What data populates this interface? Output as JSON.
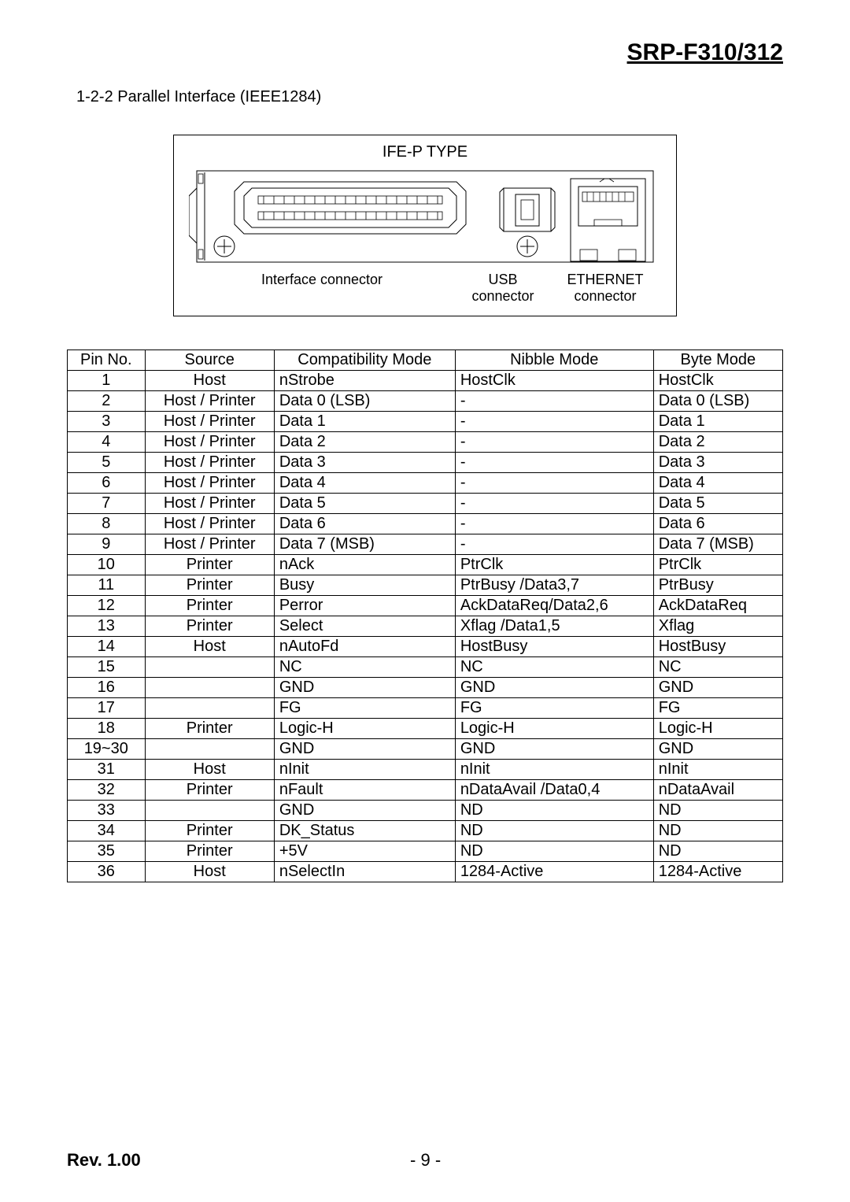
{
  "header": {
    "title": "SRP-F310/312"
  },
  "section": {
    "title": "1-2-2 Parallel Interface (IEEE1284)"
  },
  "diagram": {
    "title": "IFE-P TYPE",
    "labels": {
      "interface": "Interface connector",
      "usb_line1": "USB",
      "usb_line2": "connector",
      "eth_line1": "ETHERNET",
      "eth_line2": "connector"
    }
  },
  "table": {
    "columns": [
      "Pin No.",
      "Source",
      "Compatibility Mode",
      "Nibble Mode",
      "Byte Mode"
    ],
    "rows": [
      [
        "1",
        "Host",
        "nStrobe",
        "HostClk",
        "HostClk"
      ],
      [
        "2",
        "Host / Printer",
        "Data 0 (LSB)",
        "-",
        "Data 0 (LSB)"
      ],
      [
        "3",
        "Host / Printer",
        "Data 1",
        "-",
        "Data 1"
      ],
      [
        "4",
        "Host / Printer",
        "Data 2",
        "-",
        "Data 2"
      ],
      [
        "5",
        "Host / Printer",
        "Data 3",
        "-",
        "Data 3"
      ],
      [
        "6",
        "Host / Printer",
        "Data 4",
        "-",
        "Data 4"
      ],
      [
        "7",
        "Host / Printer",
        "Data 5",
        "-",
        "Data 5"
      ],
      [
        "8",
        "Host / Printer",
        "Data 6",
        "-",
        "Data 6"
      ],
      [
        "9",
        "Host / Printer",
        "Data 7 (MSB)",
        "-",
        "Data 7 (MSB)"
      ],
      [
        "10",
        "Printer",
        "nAck",
        "PtrClk",
        "PtrClk"
      ],
      [
        "11",
        "Printer",
        "Busy",
        "PtrBusy /Data3,7",
        "PtrBusy"
      ],
      [
        "12",
        "Printer",
        "Perror",
        "AckDataReq/Data2,6",
        "AckDataReq"
      ],
      [
        "13",
        "Printer",
        "Select",
        "Xflag /Data1,5",
        "Xflag"
      ],
      [
        "14",
        "Host",
        "nAutoFd",
        "HostBusy",
        "HostBusy"
      ],
      [
        "15",
        "",
        "NC",
        "NC",
        "NC"
      ],
      [
        "16",
        "",
        "GND",
        "GND",
        "GND"
      ],
      [
        "17",
        "",
        "FG",
        "FG",
        "FG"
      ],
      [
        "18",
        "Printer",
        "Logic-H",
        "Logic-H",
        "Logic-H"
      ],
      [
        "19~30",
        "",
        "GND",
        "GND",
        "GND"
      ],
      [
        "31",
        "Host",
        "nInit",
        "nInit",
        "nInit"
      ],
      [
        "32",
        "Printer",
        "nFault",
        "nDataAvail /Data0,4",
        "nDataAvail"
      ],
      [
        "33",
        "",
        "GND",
        "ND",
        "ND"
      ],
      [
        "34",
        "Printer",
        "DK_Status",
        "ND",
        "ND"
      ],
      [
        "35",
        "Printer",
        "+5V",
        "ND",
        "ND"
      ],
      [
        "36",
        "Host",
        "nSelectIn",
        "1284-Active",
        "1284-Active"
      ]
    ]
  },
  "footer": {
    "rev": "Rev. 1.00",
    "page": "- 9 -"
  }
}
